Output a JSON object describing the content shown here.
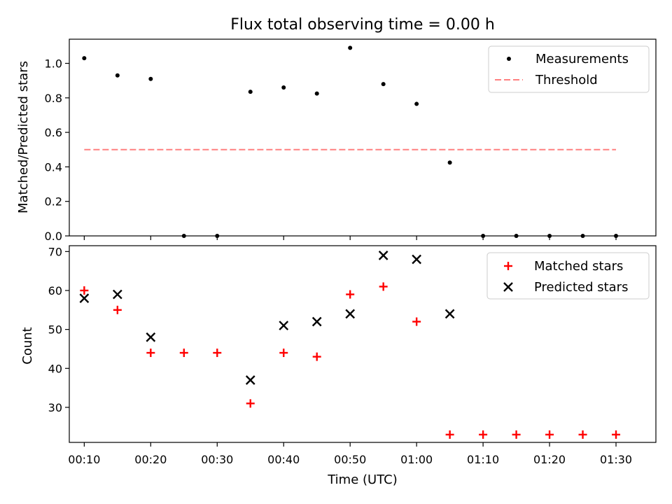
{
  "chart_data": [
    {
      "type": "scatter",
      "title": "Flux total observing time = 0.00 h",
      "xlabel": "",
      "ylabel": "Matched/Predicted stars",
      "x": [
        "00:10",
        "00:15",
        "00:20",
        "00:25",
        "00:30",
        "00:35",
        "00:40",
        "00:45",
        "00:50",
        "00:55",
        "01:00",
        "01:05",
        "01:10",
        "01:15",
        "01:20",
        "01:25",
        "01:30"
      ],
      "xlim": [
        -0.45,
        17.2
      ],
      "ylim": [
        0,
        1.14
      ],
      "yticks": [
        0.0,
        0.2,
        0.4,
        0.6,
        0.8,
        1.0
      ],
      "series": [
        {
          "name": "Measurements",
          "color": "#000000",
          "marker": "dot",
          "values": [
            1.03,
            0.93,
            0.91,
            0.0,
            0.0,
            0.835,
            0.86,
            0.825,
            1.09,
            0.88,
            0.765,
            0.425,
            0.0,
            0.0,
            0.0,
            0.0,
            0.0
          ]
        },
        {
          "name": "Threshold",
          "color": "#ff8080",
          "style": "dashed",
          "y": 0.5,
          "x_range": [
            0,
            16
          ]
        }
      ],
      "legend": "top-right",
      "grid": false
    },
    {
      "type": "scatter",
      "title": "",
      "xlabel": "Time (UTC)",
      "ylabel": "Count",
      "categories": [
        "00:10",
        "00:15",
        "00:20",
        "00:25",
        "00:30",
        "00:35",
        "00:40",
        "00:45",
        "00:50",
        "00:55",
        "01:00",
        "01:05",
        "01:10",
        "01:15",
        "01:20",
        "01:25",
        "01:30"
      ],
      "xticks": [
        "00:10",
        "00:20",
        "00:30",
        "00:40",
        "00:50",
        "01:00",
        "01:10",
        "01:20",
        "01:30"
      ],
      "xlim": [
        -0.45,
        17.2
      ],
      "ylim": [
        21,
        71.5
      ],
      "yticks": [
        30,
        40,
        50,
        60,
        70
      ],
      "series": [
        {
          "name": "Matched stars",
          "color": "#ff0000",
          "marker": "plus",
          "values": [
            60,
            55,
            44,
            44,
            44,
            31,
            44,
            43,
            59,
            61,
            52,
            23,
            23,
            23,
            23,
            23,
            23
          ]
        },
        {
          "name": "Predicted stars",
          "color": "#000000",
          "marker": "x",
          "values": [
            58,
            59,
            48,
            null,
            null,
            37,
            51,
            52,
            54,
            69,
            68,
            54,
            null,
            null,
            null,
            null,
            null
          ]
        }
      ],
      "legend": "top-right",
      "grid": false
    }
  ]
}
